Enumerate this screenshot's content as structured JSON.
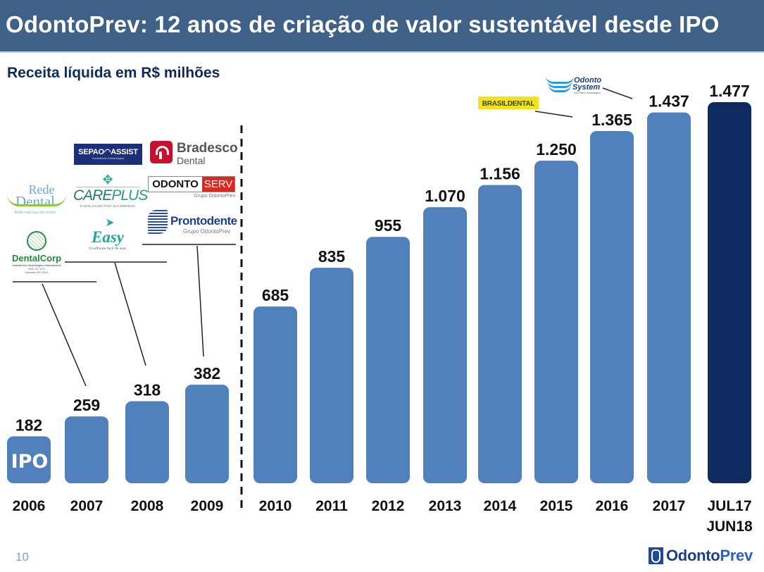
{
  "header": {
    "title": "OdontoPrev: 12 anos de criação de valor sustentável desde IPO",
    "subtitle": "Receita líquida em R$ milhões"
  },
  "footer": {
    "page_number": "10",
    "brand_part1": "Odonto",
    "brand_part2": "Prev"
  },
  "colors": {
    "header_bg": "#3f6087",
    "bar": "#5181bd",
    "bar_highlight": "#0e2a5e",
    "subtitle": "#0d2a5c"
  },
  "chart_data": {
    "type": "bar",
    "title": "Receita líquida em R$ milhões",
    "xlabel": "",
    "ylabel": "",
    "ylim": [
      0,
      1477
    ],
    "grid": false,
    "categories": [
      "2006",
      "2007",
      "2008",
      "2009",
      "2010",
      "2011",
      "2012",
      "2013",
      "2014",
      "2015",
      "2016",
      "2017",
      "JUL17 JUN18"
    ],
    "category_lines": [
      [
        "2006"
      ],
      [
        "2007"
      ],
      [
        "2008"
      ],
      [
        "2009"
      ],
      [
        "2010"
      ],
      [
        "2011"
      ],
      [
        "2012"
      ],
      [
        "2013"
      ],
      [
        "2014"
      ],
      [
        "2015"
      ],
      [
        "2016"
      ],
      [
        "2017"
      ],
      [
        "JUL17",
        "JUN18"
      ]
    ],
    "values": [
      182,
      259,
      318,
      382,
      685,
      835,
      955,
      1070,
      1156,
      1250,
      1365,
      1437,
      1477
    ],
    "data_labels": [
      "182",
      "259",
      "318",
      "382",
      "685",
      "835",
      "955",
      "1.070",
      "1.156",
      "1.250",
      "1.365",
      "1.437",
      "1.477"
    ],
    "highlight_index": 12,
    "annotations": [
      {
        "category": "2006",
        "text": "IPO"
      },
      {
        "type": "divider",
        "between": [
          "2009",
          "2010"
        ],
        "style": "dashed"
      },
      {
        "category": "2007",
        "acquisitions": [
          "DentalCorp"
        ]
      },
      {
        "category": "2008",
        "acquisitions": [
          "Rede Dental",
          "CarePlus",
          "Easy"
        ]
      },
      {
        "category": "2009",
        "acquisitions": [
          "Sepao Assist",
          "Bradesco Dental",
          "OdontoServ",
          "Prontodente"
        ]
      },
      {
        "category": "2016",
        "acquisitions": [
          "BrasilDental"
        ]
      },
      {
        "category": "2017",
        "acquisitions": [
          "Odonto System"
        ]
      }
    ]
  },
  "logos": {
    "sepao": {
      "main": "SEPAO",
      "main2": "ASSIST",
      "sub": "Assistência Odontológica"
    },
    "bradesco": {
      "line1": "Bradesco",
      "line2": "Dental"
    },
    "odontoserv": {
      "part1": "ODONTO",
      "part2": "SERV",
      "sub": "Grupo OdontoPrev"
    },
    "prontodente": {
      "name": "Prontodente",
      "sub": "Grupo OdontoPrev"
    },
    "rededental": {
      "line1": "Rede",
      "line2": "Dental",
      "sub": "Muito mais que um sorriso"
    },
    "careplus": {
      "name1": "CARE",
      "name2": "PLUS",
      "sub": "É MAIS SAÚDE PARA SUA EMPRESA"
    },
    "easy": {
      "name": "Easy",
      "sub": "O software fácil de usar."
    },
    "dentalcorp": {
      "name": "DentalCorp",
      "sub1": "Assistência Odontológica Internacional",
      "sub2": "ANS 41715-9",
      "sub3": "Garantia ISO 9001"
    },
    "brasildental": {
      "name": "BRASILDENTAL"
    },
    "odontosystem": {
      "line1": "Odonto",
      "line2": "System",
      "sub": "Seu Plano Odontológico"
    }
  }
}
